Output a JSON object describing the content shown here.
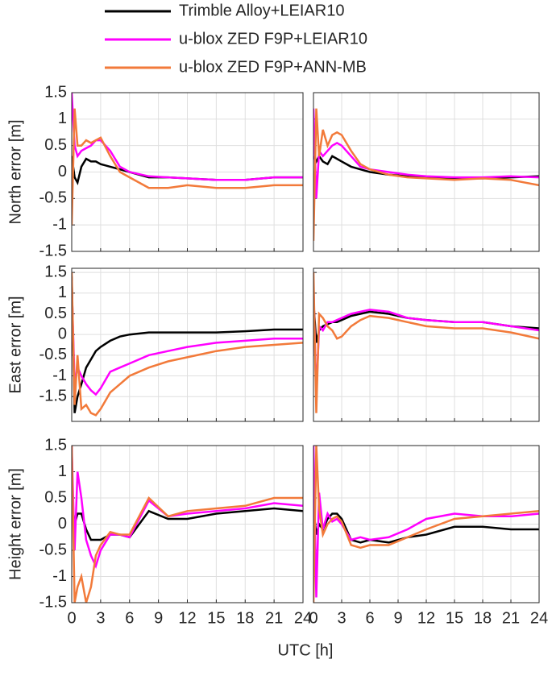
{
  "chart_data": [
    {
      "type": "line",
      "ylabel": "North error [m]",
      "xlim": [
        0,
        24
      ],
      "ylim": [
        -1.5,
        1.5
      ],
      "xticks": [
        0,
        3,
        6,
        9,
        12,
        15,
        18,
        21,
        24
      ],
      "yticks": [
        -1.5,
        -1,
        -0.5,
        0,
        0.5,
        1,
        1.5
      ],
      "grid": true,
      "x": [
        0,
        0.3,
        0.6,
        1,
        1.5,
        2,
        2.5,
        3,
        4,
        5,
        6,
        8,
        10,
        12,
        15,
        18,
        21,
        24
      ],
      "series": [
        {
          "name": "Trimble Alloy+LEIAR10",
          "color": "#000000",
          "values": [
            0.3,
            -0.1,
            -0.2,
            0.1,
            0.25,
            0.2,
            0.2,
            0.15,
            0.1,
            0.05,
            0,
            -0.1,
            -0.1,
            -0.12,
            -0.15,
            -0.15,
            -0.1,
            -0.1
          ]
        },
        {
          "name": "u-blox ZED F9P+LEIAR10",
          "color": "#ff00ff",
          "values": [
            1.5,
            0.5,
            0.3,
            0.4,
            0.45,
            0.5,
            0.6,
            0.6,
            0.4,
            0.1,
            0,
            -0.08,
            -0.1,
            -0.12,
            -0.15,
            -0.15,
            -0.1,
            -0.1
          ]
        },
        {
          "name": "u-blox ZED F9P+ANN-MB",
          "color": "#f27a3a",
          "values": [
            -1,
            1.2,
            0.5,
            0.5,
            0.6,
            0.55,
            0.6,
            0.65,
            0.3,
            0,
            -0.1,
            -0.3,
            -0.3,
            -0.25,
            -0.3,
            -0.3,
            -0.25,
            -0.25
          ]
        }
      ]
    },
    {
      "type": "line",
      "xlim": [
        0,
        24
      ],
      "ylim": [
        -1.5,
        1.5
      ],
      "xticks": [
        0,
        3,
        6,
        9,
        12,
        15,
        18,
        21,
        24
      ],
      "yticks": [
        -1.5,
        -1,
        -0.5,
        0,
        0.5,
        1,
        1.5
      ],
      "grid": true,
      "x": [
        0,
        0.3,
        0.6,
        1,
        1.5,
        2,
        2.5,
        3,
        4,
        5,
        6,
        8,
        10,
        12,
        15,
        18,
        21,
        24
      ],
      "series": [
        {
          "color": "#000000",
          "values": [
            0.3,
            0.2,
            0.3,
            0.2,
            0.15,
            0.3,
            0.25,
            0.2,
            0.1,
            0.05,
            0,
            -0.05,
            -0.08,
            -0.1,
            -0.12,
            -0.12,
            -0.1,
            -0.08
          ]
        },
        {
          "color": "#ff00ff",
          "values": [
            1.2,
            -0.5,
            0.4,
            0.3,
            0.4,
            0.5,
            0.55,
            0.5,
            0.3,
            0.1,
            0.05,
            0,
            -0.05,
            -0.08,
            -0.1,
            -0.1,
            -0.08,
            -0.1
          ]
        },
        {
          "color": "#f27a3a",
          "values": [
            -1.3,
            1.2,
            0.3,
            0.8,
            0.5,
            0.7,
            0.75,
            0.7,
            0.4,
            0.15,
            0.05,
            -0.05,
            -0.1,
            -0.12,
            -0.15,
            -0.12,
            -0.15,
            -0.25
          ]
        }
      ]
    },
    {
      "type": "line",
      "ylabel": "East error [m]",
      "xlim": [
        0,
        24
      ],
      "ylim": [
        -2.1,
        1.6
      ],
      "xticks": [
        0,
        3,
        6,
        9,
        12,
        15,
        18,
        21,
        24
      ],
      "yticks": [
        -1.5,
        -1,
        -0.5,
        0,
        0.5,
        1,
        1.5
      ],
      "grid": true,
      "x": [
        0,
        0.3,
        0.6,
        1,
        1.5,
        2,
        2.5,
        3,
        4,
        5,
        6,
        8,
        10,
        12,
        15,
        18,
        21,
        24
      ],
      "series": [
        {
          "color": "#000000",
          "values": [
            1.4,
            -1.9,
            -1.5,
            -1.2,
            -0.8,
            -0.6,
            -0.4,
            -0.3,
            -0.15,
            -0.05,
            0,
            0.05,
            0.05,
            0.05,
            0.05,
            0.08,
            0.12,
            0.12
          ]
        },
        {
          "color": "#ff00ff",
          "values": [
            1.2,
            -1.2,
            -0.8,
            -1.0,
            -1.2,
            -1.35,
            -1.45,
            -1.3,
            -0.9,
            -0.8,
            -0.7,
            -0.5,
            -0.4,
            -0.3,
            -0.2,
            -0.15,
            -0.1,
            -0.1
          ]
        },
        {
          "color": "#f27a3a",
          "values": [
            1.5,
            -1.7,
            -0.5,
            -1.8,
            -1.7,
            -1.9,
            -1.95,
            -1.8,
            -1.4,
            -1.2,
            -1.0,
            -0.8,
            -0.65,
            -0.55,
            -0.4,
            -0.3,
            -0.25,
            -0.2
          ]
        }
      ]
    },
    {
      "type": "line",
      "xlim": [
        0,
        24
      ],
      "ylim": [
        -2.1,
        1.6
      ],
      "xticks": [
        0,
        3,
        6,
        9,
        12,
        15,
        18,
        21,
        24
      ],
      "yticks": [
        -1.5,
        -1,
        -0.5,
        0,
        0.5,
        1,
        1.5
      ],
      "grid": true,
      "x": [
        0,
        0.3,
        0.6,
        1,
        1.5,
        2,
        2.5,
        3,
        4,
        5,
        6,
        8,
        10,
        12,
        15,
        18,
        21,
        24
      ],
      "series": [
        {
          "color": "#000000",
          "values": [
            0.8,
            -0.2,
            0.1,
            0.2,
            0.25,
            0.3,
            0.3,
            0.35,
            0.45,
            0.5,
            0.55,
            0.5,
            0.4,
            0.35,
            0.3,
            0.3,
            0.2,
            0.15
          ]
        },
        {
          "color": "#ff00ff",
          "values": [
            1.2,
            -1.5,
            0.2,
            0.1,
            0.3,
            0.3,
            0.35,
            0.4,
            0.5,
            0.55,
            0.6,
            0.55,
            0.4,
            0.35,
            0.3,
            0.3,
            0.2,
            0.1
          ]
        },
        {
          "color": "#f27a3a",
          "values": [
            1.5,
            -1.9,
            0.5,
            0.4,
            0.2,
            0.1,
            -0.1,
            -0.05,
            0.2,
            0.35,
            0.45,
            0.4,
            0.3,
            0.2,
            0.15,
            0.15,
            0.05,
            -0.1
          ]
        }
      ]
    },
    {
      "type": "line",
      "ylabel": "Height error [m]",
      "xlabel": "UTC [h]",
      "show_xtick_labels": true,
      "xlim": [
        0,
        24
      ],
      "ylim": [
        -1.5,
        1.5
      ],
      "xticks": [
        0,
        3,
        6,
        9,
        12,
        15,
        18,
        21,
        24
      ],
      "yticks": [
        -1.5,
        -1,
        -0.5,
        0,
        0.5,
        1,
        1.5
      ],
      "grid": true,
      "x": [
        0,
        0.3,
        0.6,
        1,
        1.5,
        2,
        2.5,
        3,
        4,
        5,
        6,
        8,
        10,
        12,
        15,
        18,
        21,
        24
      ],
      "series": [
        {
          "color": "#000000",
          "values": [
            0.5,
            0,
            0.2,
            0.2,
            -0.1,
            -0.3,
            -0.3,
            -0.3,
            -0.2,
            -0.2,
            -0.25,
            0.25,
            0.1,
            0.1,
            0.2,
            0.25,
            0.3,
            0.25
          ]
        },
        {
          "color": "#ff00ff",
          "values": [
            1.5,
            -0.5,
            1.0,
            0.5,
            -0.3,
            -0.6,
            -0.8,
            -0.5,
            -0.2,
            -0.2,
            -0.25,
            0.45,
            0.15,
            0.2,
            0.25,
            0.3,
            0.4,
            0.35
          ]
        },
        {
          "color": "#f27a3a",
          "values": [
            1.5,
            -1.5,
            -1.2,
            -1.0,
            -1.5,
            -1.2,
            -0.6,
            -0.4,
            -0.15,
            -0.2,
            -0.2,
            0.5,
            0.15,
            0.25,
            0.3,
            0.35,
            0.5,
            0.5
          ]
        }
      ]
    },
    {
      "type": "line",
      "show_xtick_labels": true,
      "xlim": [
        0,
        24
      ],
      "ylim": [
        -1.5,
        1.5
      ],
      "xticks": [
        0,
        3,
        6,
        9,
        12,
        15,
        18,
        21,
        24
      ],
      "yticks": [
        -1.5,
        -1,
        -0.5,
        0,
        0.5,
        1,
        1.5
      ],
      "grid": true,
      "x": [
        0,
        0.3,
        0.6,
        1,
        1.5,
        2,
        2.5,
        3,
        4,
        5,
        6,
        8,
        10,
        12,
        15,
        18,
        21,
        24
      ],
      "series": [
        {
          "color": "#000000",
          "values": [
            0.3,
            -0.2,
            0,
            -0.1,
            0.1,
            0.2,
            0.2,
            0.1,
            -0.3,
            -0.35,
            -0.3,
            -0.35,
            -0.25,
            -0.2,
            -0.05,
            -0.05,
            -0.1,
            -0.1
          ]
        },
        {
          "color": "#ff00ff",
          "values": [
            1.5,
            -1.4,
            0.6,
            -0.1,
            0.2,
            0.05,
            0.1,
            0,
            -0.3,
            -0.25,
            -0.3,
            -0.25,
            -0.1,
            0.1,
            0.2,
            0.15,
            0.15,
            0.2
          ]
        },
        {
          "color": "#f27a3a",
          "values": [
            -1.5,
            1.5,
            0.3,
            -0.2,
            0,
            0.1,
            0.15,
            0.05,
            -0.4,
            -0.45,
            -0.4,
            -0.4,
            -0.25,
            -0.1,
            0.1,
            0.15,
            0.2,
            0.25
          ]
        }
      ]
    }
  ]
}
